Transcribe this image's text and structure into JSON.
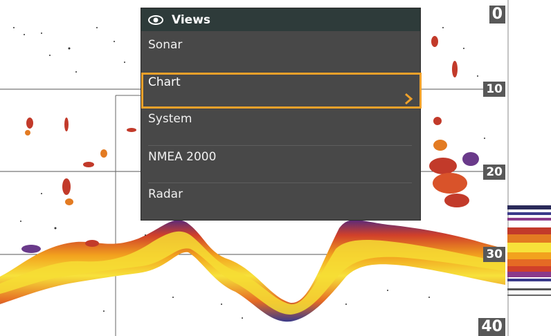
{
  "views_menu": {
    "title": "Views",
    "icon": "eye-icon",
    "items": [
      {
        "label": "Sonar"
      },
      {
        "label": "Chart",
        "selected": true
      },
      {
        "label": "System"
      },
      {
        "label": "NMEA 2000"
      },
      {
        "label": "Radar"
      }
    ]
  },
  "depth_scale": [
    "0",
    "10",
    "20",
    "30",
    "40"
  ],
  "colors": {
    "highlight": "#f0a12a",
    "menu_bg": "#484848",
    "header_bg": "#2e3b3a"
  }
}
